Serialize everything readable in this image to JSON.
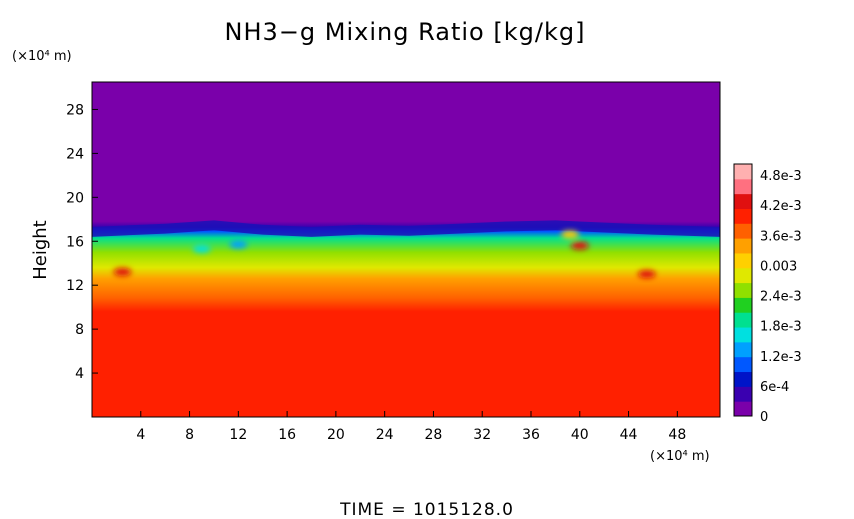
{
  "chart_data": {
    "type": "heatmap",
    "title": "NH3−g Mixing Ratio [kg/kg]",
    "ylabel": "Height",
    "y_unit": "(×10⁴ m)",
    "x_unit": "(×10⁴ m)",
    "x_ticks": [
      "4",
      "8",
      "12",
      "16",
      "20",
      "24",
      "28",
      "32",
      "36",
      "40",
      "44",
      "48"
    ],
    "y_ticks": [
      "4",
      "8",
      "12",
      "16",
      "20",
      "24",
      "28"
    ],
    "xlim": [
      0,
      51.5
    ],
    "ylim": [
      0,
      30.5
    ],
    "colorbar": {
      "ticks": [
        "0",
        "6e-4",
        "1.2e-3",
        "1.8e-3",
        "2.4e-3",
        "0.003",
        "3.6e-3",
        "4.2e-3",
        "4.8e-3"
      ],
      "range": [
        0,
        0.005
      ],
      "colors": [
        "#7a00aa",
        "#3a00b0",
        "#0014c8",
        "#0058ff",
        "#00a0ff",
        "#00e0e0",
        "#00e090",
        "#20d020",
        "#90e000",
        "#e0e800",
        "#ffd000",
        "#ffa000",
        "#ff6000",
        "#ff2000",
        "#e01010",
        "#ff7080",
        "#ffb0b0"
      ]
    },
    "profile": [
      {
        "z": 0,
        "value": 0.00405
      },
      {
        "z": 9.6,
        "value": 0.00405
      },
      {
        "z": 10.8,
        "value": 0.0038
      },
      {
        "z": 12.6,
        "value": 0.0033
      },
      {
        "z": 13.6,
        "value": 0.0029
      },
      {
        "z": 15.0,
        "value": 0.0024
      },
      {
        "z": 16.3,
        "value": 0.002
      },
      {
        "z": 16.9,
        "value": 0.001
      },
      {
        "z": 17.3,
        "value": 0.0003
      },
      {
        "z": 17.8,
        "value": 0.0
      },
      {
        "z": 30.5,
        "value": 0.0
      }
    ],
    "cloud_top": [
      {
        "x": 0,
        "z": 17.3
      },
      {
        "x": 6,
        "z": 17.6
      },
      {
        "x": 10,
        "z": 17.9
      },
      {
        "x": 14,
        "z": 17.5
      },
      {
        "x": 18,
        "z": 17.3
      },
      {
        "x": 22,
        "z": 17.5
      },
      {
        "x": 26,
        "z": 17.4
      },
      {
        "x": 30,
        "z": 17.6
      },
      {
        "x": 34,
        "z": 17.8
      },
      {
        "x": 38,
        "z": 17.9
      },
      {
        "x": 42,
        "z": 17.7
      },
      {
        "x": 46,
        "z": 17.5
      },
      {
        "x": 51.5,
        "z": 17.3
      }
    ],
    "hotspots": [
      {
        "x": 2.5,
        "z": 13.2,
        "value": 0.0043
      },
      {
        "x": 40.0,
        "z": 15.6,
        "value": 0.0043
      },
      {
        "x": 45.5,
        "z": 13.0,
        "value": 0.0043
      },
      {
        "x": 39.2,
        "z": 16.6,
        "value": 0.003
      },
      {
        "x": 9.0,
        "z": 15.3,
        "value": 0.0015
      },
      {
        "x": 12.0,
        "z": 15.7,
        "value": 0.0012
      }
    ],
    "time_label": "TIME",
    "time_value": "1015128.0"
  }
}
